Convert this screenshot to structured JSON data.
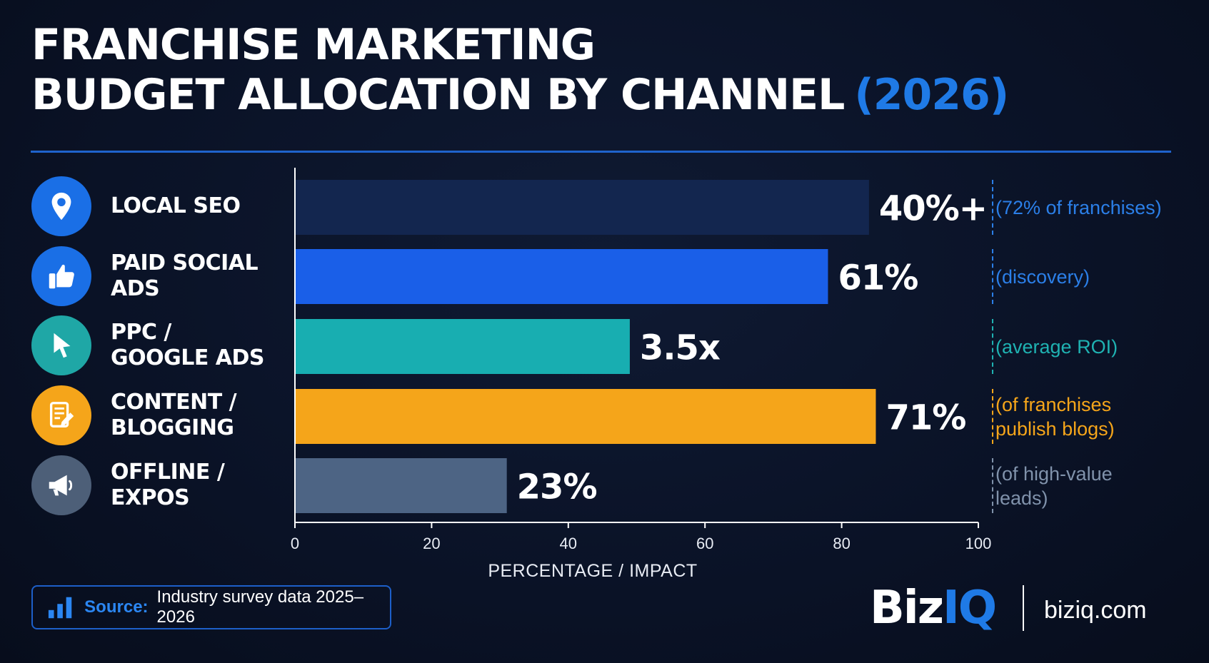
{
  "title": {
    "line1": "FRANCHISE MARKETING",
    "line2": "BUDGET ALLOCATION BY CHANNEL",
    "year": "(2026)"
  },
  "chart_data": {
    "type": "bar",
    "orientation": "horizontal",
    "categories": [
      "LOCAL SEO",
      "PAID SOCIAL ADS",
      "PPC / GOOGLE ADS",
      "CONTENT / BLOGGING",
      "OFFLINE / EXPOS"
    ],
    "category_lines": [
      [
        "LOCAL SEO"
      ],
      [
        "PAID SOCIAL ADS"
      ],
      [
        "PPC /",
        "GOOGLE ADS"
      ],
      [
        "CONTENT /",
        "BLOGGING"
      ],
      [
        "OFFLINE /",
        "EXPOS"
      ]
    ],
    "values": [
      84,
      78,
      49,
      85,
      31
    ],
    "data_labels": [
      "40%+",
      "61%",
      "3.5x",
      "71%",
      "23%"
    ],
    "notes": [
      "(72% of franchises)",
      "(discovery)",
      "(average ROI)",
      "(of franchises\npublish blogs)",
      "(of high-value\nleads)"
    ],
    "colors": [
      "#13264f",
      "#1a5fe8",
      "#18aeb1",
      "#f5a51a",
      "#4d6484"
    ],
    "note_colors": [
      "#2b7fe8",
      "#2b7fe8",
      "#1fb2b2",
      "#f5a51a",
      "#8092ab"
    ],
    "icons": [
      "location-pin-icon",
      "thumbs-up-icon",
      "cursor-pointer-icon",
      "document-edit-icon",
      "megaphone-icon"
    ],
    "icon_colors": [
      "#1a6fe6",
      "#1a6fe6",
      "#1fa7a6",
      "#f5a51a",
      "#4d5f78"
    ],
    "xlim": [
      0,
      100
    ],
    "xticks": [
      "0",
      "20",
      "40",
      "60",
      "80",
      "100"
    ],
    "xlabel": "PERCENTAGE / IMPACT",
    "ylabel": "",
    "grid": false
  },
  "source": {
    "label": "Source:",
    "text": "Industry survey data 2025–2026"
  },
  "brand": {
    "biz": "Biz",
    "iq": "IQ",
    "url": "biziq.com"
  },
  "colors": {
    "background": "#0a1226",
    "accent": "#1f7ae6"
  }
}
